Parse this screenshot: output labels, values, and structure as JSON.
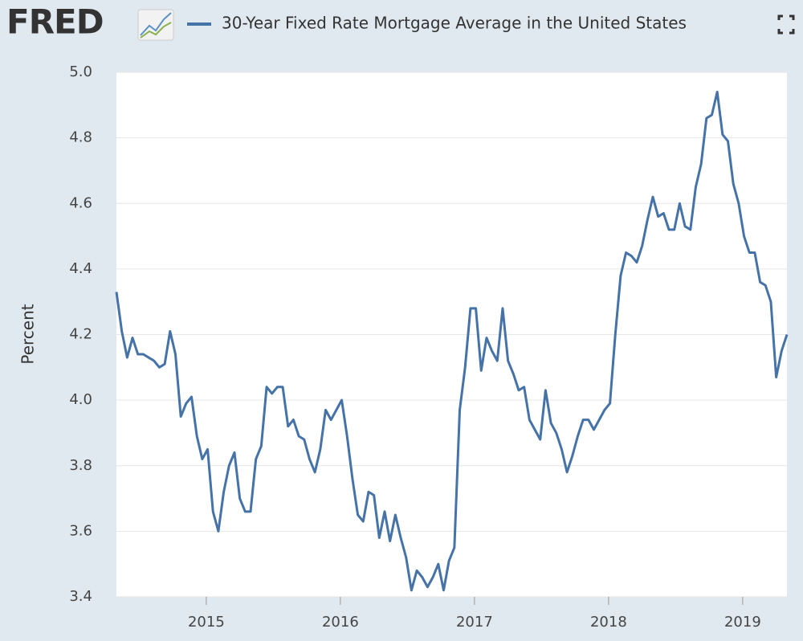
{
  "logo": "FRED",
  "chart_data": {
    "type": "line",
    "ylabel": "Percent",
    "xlim": [
      2014.33,
      2019.33
    ],
    "xticks": [
      2015,
      2016,
      2017,
      2018,
      2019
    ],
    "ylim": [
      3.4,
      5.0
    ],
    "yticks": [
      3.4,
      3.6,
      3.8,
      {
        "value": 4,
        "label": "4.0"
      },
      4.2,
      4.4,
      4.6,
      4.8,
      {
        "value": 5,
        "label": "5.0"
      }
    ],
    "grid": true,
    "x": [
      2014.33,
      2014.37,
      2014.41,
      2014.45,
      2014.49,
      2014.53,
      2014.57,
      2014.61,
      2014.65,
      2014.69,
      2014.73,
      2014.77,
      2014.81,
      2014.85,
      2014.89,
      2014.93,
      2014.97,
      2015.01,
      2015.05,
      2015.09,
      2015.13,
      2015.17,
      2015.21,
      2015.25,
      2015.29,
      2015.33,
      2015.37,
      2015.41,
      2015.45,
      2015.49,
      2015.53,
      2015.57,
      2015.61,
      2015.65,
      2015.69,
      2015.73,
      2015.77,
      2015.81,
      2015.85,
      2015.89,
      2015.93,
      2015.97,
      2016.01,
      2016.05,
      2016.09,
      2016.13,
      2016.17,
      2016.21,
      2016.25,
      2016.29,
      2016.33,
      2016.37,
      2016.41,
      2016.45,
      2016.49,
      2016.53,
      2016.57,
      2016.61,
      2016.65,
      2016.69,
      2016.73,
      2016.77,
      2016.81,
      2016.85,
      2016.89,
      2016.93,
      2016.97,
      2017.01,
      2017.05,
      2017.09,
      2017.13,
      2017.17,
      2017.21,
      2017.25,
      2017.29,
      2017.33,
      2017.37,
      2017.41,
      2017.45,
      2017.49,
      2017.53,
      2017.57,
      2017.61,
      2017.65,
      2017.69,
      2017.73,
      2017.77,
      2017.81,
      2017.85,
      2017.89,
      2017.93,
      2017.97,
      2018.01,
      2018.05,
      2018.09,
      2018.13,
      2018.17,
      2018.21,
      2018.25,
      2018.29,
      2018.33,
      2018.37,
      2018.41,
      2018.45,
      2018.49,
      2018.53,
      2018.57,
      2018.61,
      2018.65,
      2018.69,
      2018.73,
      2018.77,
      2018.81,
      2018.85,
      2018.89,
      2018.93,
      2018.97,
      2019.01,
      2019.05,
      2019.09,
      2019.13,
      2019.17,
      2019.21,
      2019.25,
      2019.29,
      2019.33
    ],
    "series": [
      {
        "name": "30-Year Fixed Rate Mortgage Average in the United States",
        "color": "#4572a7",
        "values": [
          4.33,
          4.21,
          4.13,
          4.19,
          4.14,
          4.14,
          4.13,
          4.12,
          4.1,
          4.11,
          4.21,
          4.14,
          3.95,
          3.99,
          4.01,
          3.89,
          3.82,
          3.85,
          3.66,
          3.6,
          3.72,
          3.8,
          3.84,
          3.7,
          3.66,
          3.66,
          3.82,
          3.86,
          4.04,
          4.02,
          4.04,
          4.04,
          3.92,
          3.94,
          3.89,
          3.88,
          3.82,
          3.78,
          3.85,
          3.97,
          3.94,
          3.97,
          4.0,
          3.89,
          3.76,
          3.65,
          3.63,
          3.72,
          3.71,
          3.58,
          3.66,
          3.57,
          3.65,
          3.58,
          3.52,
          3.42,
          3.48,
          3.46,
          3.43,
          3.46,
          3.5,
          3.42,
          3.51,
          3.55,
          3.97,
          4.1,
          4.28,
          4.28,
          4.09,
          4.19,
          4.15,
          4.12,
          4.28,
          4.12,
          4.08,
          4.03,
          4.04,
          3.94,
          3.91,
          3.88,
          4.03,
          3.93,
          3.9,
          3.85,
          3.78,
          3.83,
          3.89,
          3.94,
          3.94,
          3.91,
          3.94,
          3.97,
          3.99,
          4.2,
          4.38,
          4.45,
          4.44,
          4.42,
          4.47,
          4.55,
          4.62,
          4.56,
          4.57,
          4.52,
          4.52,
          4.6,
          4.53,
          4.52,
          4.65,
          4.72,
          4.86,
          4.87,
          4.94,
          4.81,
          4.79,
          4.66,
          4.6,
          4.5,
          4.45,
          4.45,
          4.36,
          4.35,
          4.3,
          4.07,
          4.15,
          4.2
        ]
      }
    ]
  }
}
